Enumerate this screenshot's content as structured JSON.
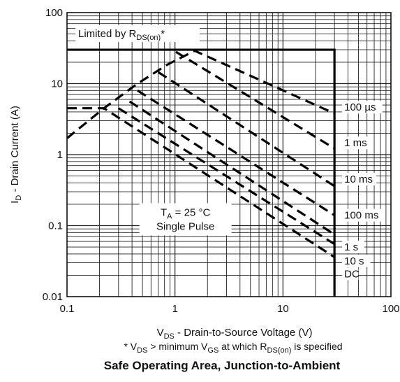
{
  "chart_data": {
    "type": "line",
    "title": "Safe Operating Area, Junction-to-Ambient",
    "xlabel": {
      "pre": "V",
      "sub": "DS",
      "post": " - Drain-to-Source Voltage (V)"
    },
    "ylabel": {
      "pre": "I",
      "sub": "D",
      "post": " - Drain Current (A)"
    },
    "xscale": "log",
    "yscale": "log",
    "xlim": [
      0.1,
      100
    ],
    "ylim": [
      0.01,
      100
    ],
    "grid": true,
    "xtick_labels": [
      "0.1",
      "1",
      "10",
      "100"
    ],
    "ytick_labels": [
      "0.01",
      "0.1",
      "1",
      "10",
      "100"
    ],
    "boundary": {
      "name": "Limited by R_DS(on)*",
      "label": {
        "pre": "Limited by R",
        "sub": "DS(on)",
        "post": "*"
      },
      "x": [
        0.1,
        30,
        30
      ],
      "y": [
        30,
        30,
        0.01
      ]
    },
    "series": [
      {
        "name": "100 µs",
        "x": [
          0.1,
          0.22,
          0.45,
          0.85,
          1.52,
          30
        ],
        "y": [
          1.7,
          4.5,
          10.0,
          18.5,
          29.0,
          3.8
        ]
      },
      {
        "name": "1 ms",
        "x": [
          1.02,
          30
        ],
        "y": [
          28.0,
          1.22
        ]
      },
      {
        "name": "10 ms",
        "x": [
          0.7,
          30
        ],
        "y": [
          14.5,
          0.36
        ]
      },
      {
        "name": "100 ms",
        "x": [
          0.45,
          30
        ],
        "y": [
          8.0,
          0.14
        ]
      },
      {
        "name": "1 s",
        "x": [
          0.38,
          30
        ],
        "y": [
          5.6,
          0.075
        ]
      },
      {
        "name": "10 s",
        "x": [
          0.3,
          30
        ],
        "y": [
          4.5,
          0.055
        ]
      },
      {
        "name": "DC",
        "x": [
          0.1,
          0.22,
          30
        ],
        "y": [
          4.5,
          4.5,
          0.036
        ]
      }
    ],
    "annotation": {
      "line1": {
        "pre": "T",
        "sub": "A",
        "post": " = 25 °C"
      },
      "line2": "Single Pulse"
    },
    "footnote": {
      "parts": [
        "* V",
        "DS",
        " > minimum V",
        "GS",
        " at which R",
        "DS(on)",
        " is specified"
      ]
    }
  }
}
